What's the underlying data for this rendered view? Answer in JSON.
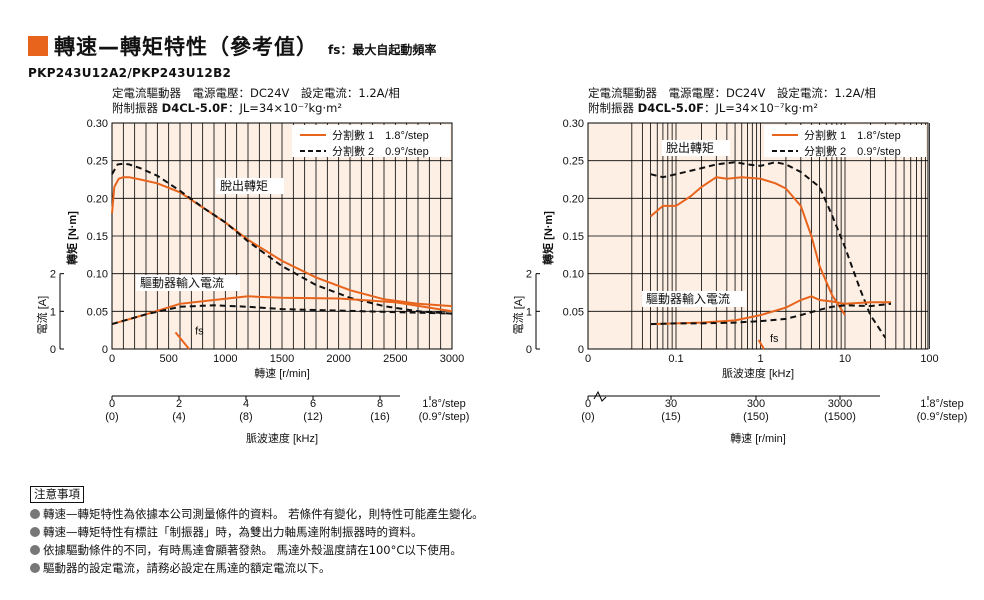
{
  "header": {
    "title": "轉速—轉矩特性（參考值）",
    "subtitle": "fs：最大自起動頻率",
    "model": "PKP243U12A2/PKP243U12B2"
  },
  "charts": [
    {
      "cond_line1": "定電流驅動器　電源電壓：DC24V　設定電流：1.2A/相",
      "cond_prefix": "附制振器 ",
      "cond_damper": "D4CL-5.0F",
      "cond_inertia": "：JL=34×10⁻⁷kg·m²",
      "legend1_label": "分割數 1　1.8°/step",
      "legend2_label": "分割數 2　0.9°/step",
      "pullout_label": "脫出轉矩",
      "driver_label": "驅動器輸入電流",
      "fs_label": "fs",
      "xlabel": "轉速 [r/min]",
      "ylabel": "轉矩 [N·m]",
      "y2label": "電流 [A]",
      "xlabel2": "脈波速度 [kHz]",
      "xticks": [
        "0",
        "500",
        "1000",
        "1500",
        "2000",
        "2500",
        "3000"
      ],
      "yticks": [
        "0",
        "0.05",
        "0.10",
        "0.15",
        "0.20",
        "0.25",
        "0.30"
      ],
      "y2ticks": [
        "0",
        "1",
        "2"
      ],
      "sub_ticks": [
        {
          "top": "0",
          "bot": "(0)"
        },
        {
          "top": "2",
          "bot": "(4)"
        },
        {
          "top": "4",
          "bot": "(8)"
        },
        {
          "top": "6",
          "bot": "(12)"
        },
        {
          "top": "8",
          "bot": "(16)"
        },
        {
          "top": "1.8°/step",
          "bot": "(0.9°/step)"
        }
      ]
    },
    {
      "cond_line1": "定電流驅動器　電源電壓：DC24V　設定電流：1.2A/相",
      "cond_prefix": "附制振器 ",
      "cond_damper": "D4CL-5.0F",
      "cond_inertia": "：JL=34×10⁻⁷kg·m²",
      "legend1_label": "分割數 1　1.8°/step",
      "legend2_label": "分割數 2　0.9°/step",
      "pullout_label": "脫出轉矩",
      "driver_label": "驅動器輸入電流",
      "fs_label": "fs",
      "xlabel": "脈波速度 [kHz]",
      "ylabel": "轉矩 [N·m]",
      "y2label": "電流 [A]",
      "xlabel2": "轉速 [r/min]",
      "xticks": [
        "0",
        "0.1",
        "1",
        "10",
        "100"
      ],
      "yticks": [
        "0",
        "0.05",
        "0.10",
        "0.15",
        "0.20",
        "0.25",
        "0.30"
      ],
      "y2ticks": [
        "0",
        "1",
        "2"
      ],
      "sub_ticks": [
        {
          "top": "0",
          "bot": "(0)"
        },
        {
          "top": "30",
          "bot": "(15)"
        },
        {
          "top": "300",
          "bot": "(150)"
        },
        {
          "top": "3000",
          "bot": "(1500)"
        },
        {
          "top": "1.8°/step",
          "bot": "(0.9°/step)"
        }
      ]
    }
  ],
  "chart_data": [
    {
      "type": "line",
      "xlim": [
        0,
        3000
      ],
      "ylim": [
        0,
        0.3
      ],
      "series": [
        {
          "name": "分割數 1　1.8°/step",
          "kind": "torque",
          "x": [
            0,
            20,
            60,
            100,
            150,
            250,
            400,
            600,
            800,
            1000,
            1200,
            1500,
            1800,
            2100,
            2400,
            2700,
            3000
          ],
          "y": [
            0.18,
            0.215,
            0.226,
            0.228,
            0.228,
            0.225,
            0.22,
            0.208,
            0.188,
            0.168,
            0.145,
            0.117,
            0.095,
            0.078,
            0.066,
            0.06,
            0.057
          ]
        },
        {
          "name": "分割數 2　0.9°/step",
          "kind": "torque",
          "x": [
            0,
            50,
            100,
            150,
            250,
            400,
            600,
            800,
            1000,
            1200,
            1500,
            1800,
            2100,
            2400,
            2700,
            3000
          ],
          "y": [
            0.232,
            0.245,
            0.246,
            0.245,
            0.24,
            0.23,
            0.21,
            0.188,
            0.168,
            0.143,
            0.11,
            0.085,
            0.068,
            0.057,
            0.05,
            0.047
          ]
        },
        {
          "name": "分割數 1　1.8°/step",
          "kind": "current",
          "x": [
            0,
            300,
            600,
            900,
            1200,
            1500,
            2000,
            2500,
            3000
          ],
          "y": [
            0.033,
            0.046,
            0.06,
            0.065,
            0.07,
            0.068,
            0.067,
            0.062,
            0.05
          ]
        },
        {
          "name": "分割數 2　0.9°/step",
          "kind": "current",
          "x": [
            0,
            300,
            600,
            900,
            1200,
            1500,
            2000,
            2500,
            3000
          ],
          "y": [
            0.033,
            0.046,
            0.056,
            0.058,
            0.056,
            0.053,
            0.051,
            0.049,
            0.047
          ]
        }
      ],
      "fs_marker": {
        "x": [
          560,
          680
        ],
        "y": [
          0.022,
          0.0
        ]
      }
    },
    {
      "type": "line",
      "xscale": "log",
      "xlim": [
        0.01,
        100
      ],
      "ylim": [
        0,
        0.3
      ],
      "series": [
        {
          "name": "分割數 1　1.8°/step",
          "kind": "torque",
          "x": [
            0.05,
            0.07,
            0.1,
            0.15,
            0.2,
            0.3,
            0.4,
            0.6,
            1,
            1.5,
            2,
            3,
            4,
            5,
            7,
            10
          ],
          "y": [
            0.176,
            0.19,
            0.19,
            0.203,
            0.215,
            0.228,
            0.226,
            0.228,
            0.226,
            0.22,
            0.213,
            0.19,
            0.15,
            0.11,
            0.072,
            0.045
          ]
        },
        {
          "name": "分割數 2　0.9°/step",
          "kind": "torque",
          "x": [
            0.05,
            0.07,
            0.1,
            0.2,
            0.3,
            0.5,
            0.7,
            1,
            1.5,
            2,
            3,
            5,
            7,
            10,
            15,
            20,
            30
          ],
          "y": [
            0.232,
            0.228,
            0.232,
            0.24,
            0.245,
            0.248,
            0.245,
            0.243,
            0.248,
            0.245,
            0.235,
            0.215,
            0.178,
            0.135,
            0.08,
            0.045,
            0.015
          ]
        },
        {
          "name": "分割數 1　1.8°/step",
          "kind": "current",
          "x": [
            0.05,
            0.1,
            0.2,
            0.5,
            1,
            2,
            3,
            4,
            5,
            7,
            10,
            20,
            35
          ],
          "y": [
            0.033,
            0.034,
            0.035,
            0.038,
            0.045,
            0.055,
            0.065,
            0.07,
            0.065,
            0.063,
            0.06,
            0.062,
            0.062
          ]
        },
        {
          "name": "分割數 2　0.9°/step",
          "kind": "current",
          "x": [
            0.05,
            0.1,
            0.2,
            0.5,
            1,
            2,
            3,
            5,
            7,
            10,
            20,
            35
          ],
          "y": [
            0.033,
            0.034,
            0.034,
            0.035,
            0.037,
            0.04,
            0.045,
            0.052,
            0.056,
            0.058,
            0.057,
            0.06
          ]
        }
      ],
      "fs_marker": {
        "x": [
          0.95,
          1.1
        ],
        "y": [
          0.012,
          0.0
        ]
      }
    }
  ],
  "notes": {
    "title": "注意事項",
    "items": [
      "轉速—轉矩特性為依據本公司測量條件的資料。 若條件有變化，則特性可能產生變化。",
      "轉速—轉矩特性有標註「制振器」時，為雙出力軸馬達附制振器時的資料。",
      "依據驅動條件的不同，有時馬達會顯著發熱。 馬達外殼溫度請在100°C以下使用。",
      "驅動器的設定電流，請務必設定在馬達的額定電流以下。"
    ]
  },
  "colors": {
    "accent": "#e8641c",
    "plot_bg": "#fdefe4",
    "dash": "#111111"
  }
}
